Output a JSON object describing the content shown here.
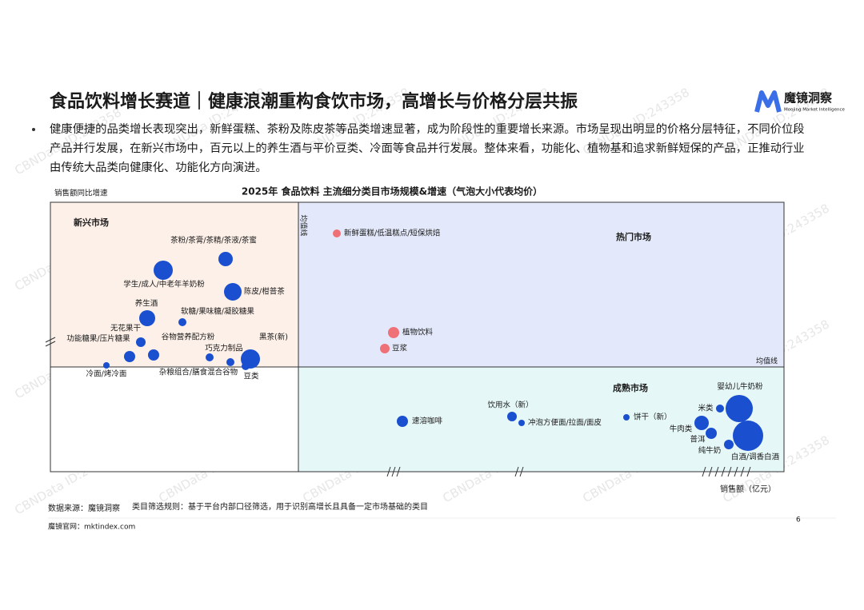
{
  "header": {
    "title": "食品饮料增长赛道｜健康浪潮重构食饮市场，高增长与价格分层共振",
    "logo_name": "魔镜洞察",
    "logo_tagline": "Moojing Market Intelligence"
  },
  "bullet": [
    "健康便捷的品类增长表现突出，新鲜蛋糕、茶粉及陈皮茶等品类增速显著，成为阶段性的重要增长来源。市场呈现出明显的价格分层特征，不同价位段",
    "产品并行发展，在新兴市场中，百元以上的养生酒与平价豆类、冷面等食品并行发展。整体来看，功能化、植物基和追求新鲜短保的产品，正推动行业",
    "由传统大品类向健康化、功能化方向演进。"
  ],
  "chart": {
    "title": "2025年 食品饮料 主流细分类目市场规模&增速（气泡大小代表均价）",
    "y_axis_label": "销售额同比增速",
    "x_axis_label": "销售额（亿元）",
    "mean_line_labels": [
      "均值线",
      "均值线"
    ],
    "quadrants": [
      "新兴市场",
      "热门市场",
      "成熟市场"
    ],
    "bubbles": [
      {
        "label": "茶粉/茶膏/茶精/茶液/茶蜜"
      },
      {
        "label": "学生/成人/中老年羊奶粉"
      },
      {
        "label": "陈皮/柑普茶"
      },
      {
        "label": "养生酒"
      },
      {
        "label": "软糖/果味糖/凝胶糖果"
      },
      {
        "label": "无花果干"
      },
      {
        "label": "功能糖果/压片糖果"
      },
      {
        "label": "谷物营养配方粉"
      },
      {
        "label": "巧克力制品"
      },
      {
        "label": "黑茶(新)"
      },
      {
        "label": "杂粮组合/膳食混合谷物"
      },
      {
        "label": "豆类"
      },
      {
        "label": "冷面/烤冷面"
      },
      {
        "label": "新鲜蛋糕/低温糕点/短保烘焙"
      },
      {
        "label": "植物饮料"
      },
      {
        "label": "豆浆"
      },
      {
        "label": "速溶咖啡"
      },
      {
        "label": "饮用水（新）"
      },
      {
        "label": "冲泡方便面/拉面/面皮"
      },
      {
        "label": "饼干（新）"
      },
      {
        "label": "婴幼儿牛奶粉"
      },
      {
        "label": "米类"
      },
      {
        "label": "牛肉类"
      },
      {
        "label": "普洱"
      },
      {
        "label": "纯牛奶"
      },
      {
        "label": "白酒/调香白酒"
      }
    ]
  },
  "footer": {
    "source": "数据来源：魔镜洞察",
    "rule": "类目筛选规则：基于平台内部口径筛选，用于识别高增长且具备一定市场基础的类目",
    "website": "魔镜官网：mktindex.com",
    "page": "6"
  },
  "watermark": "CBNData ID:243358"
}
